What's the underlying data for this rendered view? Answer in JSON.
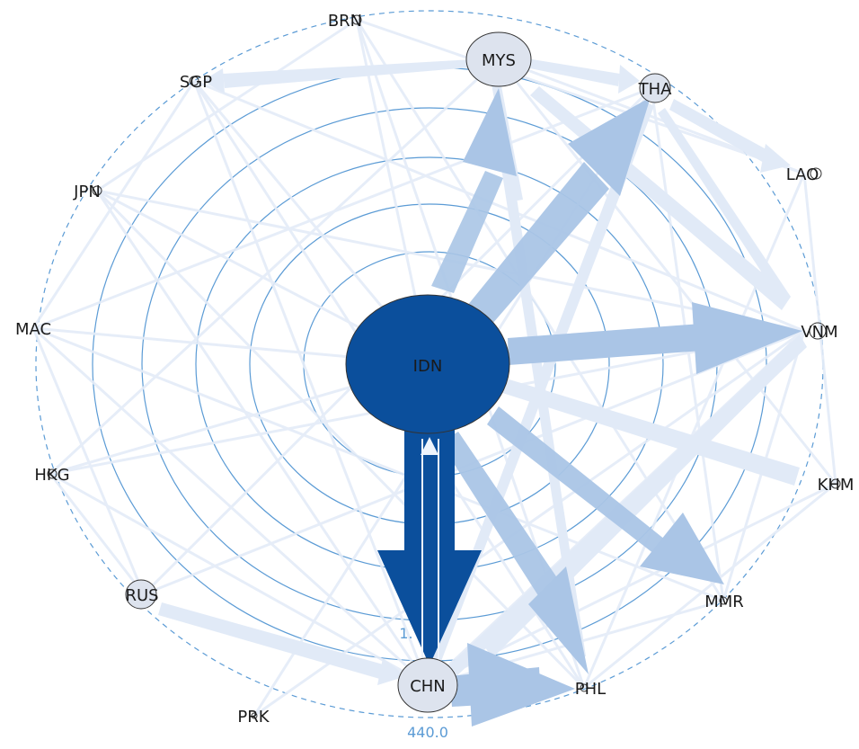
{
  "diagram": {
    "type": "radial-network",
    "center_node": "IDN",
    "nodes": {
      "IDN": "IDN",
      "MYS": "MYS",
      "THA": "THA",
      "LAO": "LAO",
      "VNM": "VNM",
      "KHM": "KHM",
      "MMR": "MMR",
      "PHL": "PHL",
      "CHN": "CHN",
      "PRK": "PRK",
      "RUS": "RUS",
      "HKG": "HKG",
      "MAC": "MAC",
      "JPN": "JPN",
      "SGP": "SGP",
      "BRN": "BRN"
    },
    "scale_labels": {
      "outer": "440.0",
      "inner": "1."
    },
    "colors": {
      "center_fill": "#0b4f9c",
      "strong_edge": "#0b4f9c",
      "medium_edge": "#a9c3e3",
      "light_edge": "#e3ecf8",
      "ring_stroke": "#5b9bd5",
      "node_fill_light": "#dde3ee"
    }
  }
}
